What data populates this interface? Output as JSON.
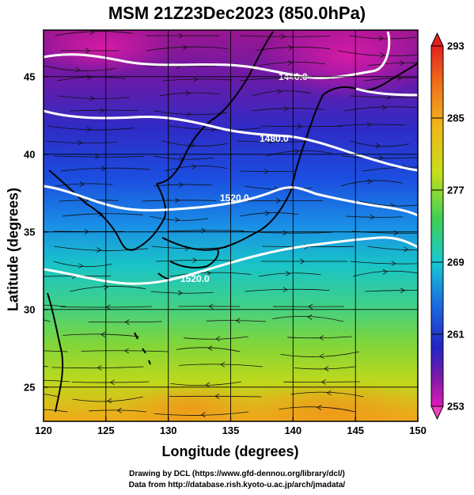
{
  "title": "MSM 21Z23Dec2023 (850.0hPa)",
  "xlabel": "Longitude (degrees)",
  "ylabel": "Latitude  (degrees)",
  "x_ticks": [
    "120",
    "125",
    "130",
    "135",
    "140",
    "145",
    "150"
  ],
  "y_ticks": [
    "25",
    "30",
    "35",
    "40",
    "45"
  ],
  "colorbar_ticks": [
    "293",
    "285",
    "277",
    "269",
    "261",
    "253"
  ],
  "contour_labels": [
    "1440.0",
    "1480.0",
    "1520.0",
    "1520.0"
  ],
  "footer": {
    "line1": "Drawing by DCL (https://www.gfd-dennou.org/library/dcl/)",
    "line2": "Data from http://database.rish.kyoto-u.ac.jp/arch/jmadata/"
  },
  "map": {
    "lon_range": [
      120,
      150
    ],
    "lat_range": [
      22.4,
      47.6
    ],
    "field": "temperature",
    "contour_field": "geopotential height",
    "colorbar_range": [
      253,
      293
    ]
  }
}
